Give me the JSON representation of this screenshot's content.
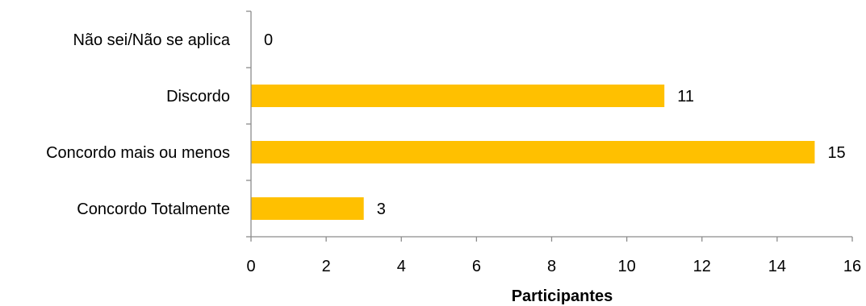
{
  "chart_data": {
    "type": "bar",
    "orientation": "horizontal",
    "categories": [
      "Não sei/Não se aplica",
      "Discordo",
      "Concordo mais ou menos",
      "Concordo Totalmente"
    ],
    "values": [
      0,
      11,
      15,
      3
    ],
    "xlabel": "Participantes",
    "xlim": [
      0,
      16
    ],
    "xticks": [
      0,
      2,
      4,
      6,
      8,
      10,
      12,
      14,
      16
    ],
    "grid": false,
    "bar_color": "#ffc000",
    "data_labels": true
  }
}
